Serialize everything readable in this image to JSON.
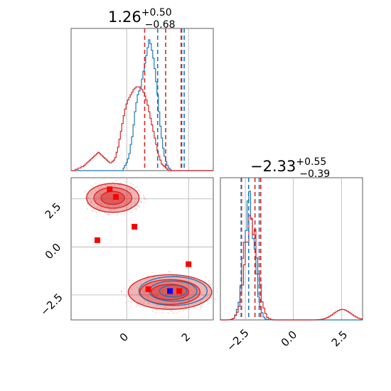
{
  "chart_data": [
    {
      "type": "histogram",
      "panel": "top-left",
      "title": {
        "main": "1.26",
        "sup": "+0.50",
        "sub": "−0.68"
      },
      "xlim": [
        -1.8,
        2.8
      ],
      "grid": true,
      "series": [
        {
          "color": "#1f77b4",
          "bin_edges": [
            -1.8,
            2.8
          ],
          "heights": [
            0,
            0,
            0,
            0,
            0,
            0,
            0,
            0,
            0,
            0,
            0,
            0,
            0,
            0,
            0,
            0,
            0,
            0,
            0,
            0,
            0,
            0,
            0,
            0,
            0,
            0,
            0,
            0,
            0,
            0,
            0,
            0,
            0,
            0,
            0,
            0,
            0,
            0.02,
            0.04,
            0.06,
            0.09,
            0.13,
            0.2,
            0.26,
            0.35,
            0.45,
            0.52,
            0.58,
            0.61,
            0.64,
            0.7,
            0.76,
            0.82,
            0.88,
            0.94,
            1.0,
            0.97,
            0.92,
            0.86,
            0.78,
            0.68,
            0.58,
            0.45,
            0.34,
            0.25,
            0.17,
            0.11,
            0.07,
            0.04,
            0.02,
            0.01,
            0,
            0,
            0,
            0,
            0,
            0,
            0,
            0,
            0,
            0,
            0,
            0,
            0,
            0,
            0,
            0,
            0,
            0,
            0,
            0,
            0,
            0,
            0,
            0,
            0,
            0,
            0,
            0,
            0,
            0
          ],
          "quantile_lines": [
            1.0,
            1.78,
            1.86
          ]
        },
        {
          "color": "#d62728",
          "bin_edges": [
            -1.8,
            2.8
          ],
          "heights": [
            0,
            0,
            0,
            0.01,
            0.01,
            0.02,
            0.02,
            0.03,
            0.03,
            0.04,
            0.05,
            0.06,
            0.07,
            0.08,
            0.09,
            0.1,
            0.11,
            0.12,
            0.13,
            0.14,
            0.13,
            0.12,
            0.11,
            0.1,
            0.09,
            0.08,
            0.07,
            0.06,
            0.06,
            0.07,
            0.08,
            0.1,
            0.14,
            0.18,
            0.24,
            0.3,
            0.36,
            0.42,
            0.47,
            0.51,
            0.54,
            0.56,
            0.58,
            0.6,
            0.62,
            0.63,
            0.64,
            0.64,
            0.64,
            0.63,
            0.62,
            0.6,
            0.57,
            0.54,
            0.5,
            0.45,
            0.4,
            0.35,
            0.3,
            0.25,
            0.2,
            0.15,
            0.11,
            0.08,
            0.05,
            0.04,
            0.03,
            0.02,
            0.01,
            0,
            0,
            0,
            0,
            0,
            0,
            0,
            0,
            0,
            0,
            0,
            0,
            0,
            0,
            0,
            0,
            0,
            0,
            0,
            0,
            0,
            0,
            0,
            0,
            0,
            0,
            0,
            0,
            0,
            0,
            0,
            0
          ],
          "quantile_lines": [
            0.58,
            1.26,
            1.76
          ]
        }
      ]
    },
    {
      "type": "scatter_contour",
      "panel": "bottom-left",
      "xlim": [
        -1.8,
        2.8
      ],
      "ylim": [
        -3.8,
        3.6
      ],
      "xticks": [
        "0",
        "2"
      ],
      "yticks": [
        "2.5",
        "0.0",
        "−2.5"
      ],
      "grid": true,
      "red_markers": [
        {
          "x": -0.55,
          "y": 3.0
        },
        {
          "x": -0.35,
          "y": 2.6
        },
        {
          "x": 0.25,
          "y": 1.05
        },
        {
          "x": -0.95,
          "y": 0.35
        },
        {
          "x": 2.0,
          "y": -0.9
        },
        {
          "x": 0.7,
          "y": -2.2
        },
        {
          "x": 1.7,
          "y": -2.3
        }
      ],
      "blue_marker": {
        "x": 1.4,
        "y": -2.3
      },
      "red_contours": [
        {
          "center": [
            -0.45,
            2.55
          ],
          "rx": 0.85,
          "ry": 0.75
        },
        {
          "center": [
            1.4,
            -2.35
          ],
          "rx": 1.35,
          "ry": 0.9
        }
      ],
      "blue_contours": [
        {
          "center": [
            1.5,
            -2.3
          ],
          "rx": 1.1,
          "ry": 0.75
        }
      ]
    },
    {
      "type": "histogram",
      "panel": "bottom-right",
      "title": {
        "main": "−2.33",
        "sup": "+0.55",
        "sub": "−0.39"
      },
      "xlim": [
        -3.8,
        3.6
      ],
      "xticks": [
        "−2.5",
        "0.0",
        "2.5"
      ],
      "grid": true,
      "series": [
        {
          "color": "#1f77b4",
          "quantile_lines": [
            -2.72,
            -2.33,
            -1.78
          ]
        },
        {
          "color": "#d62728",
          "quantile_lines": [
            -2.7,
            -2.0,
            -1.7
          ]
        }
      ]
    }
  ]
}
